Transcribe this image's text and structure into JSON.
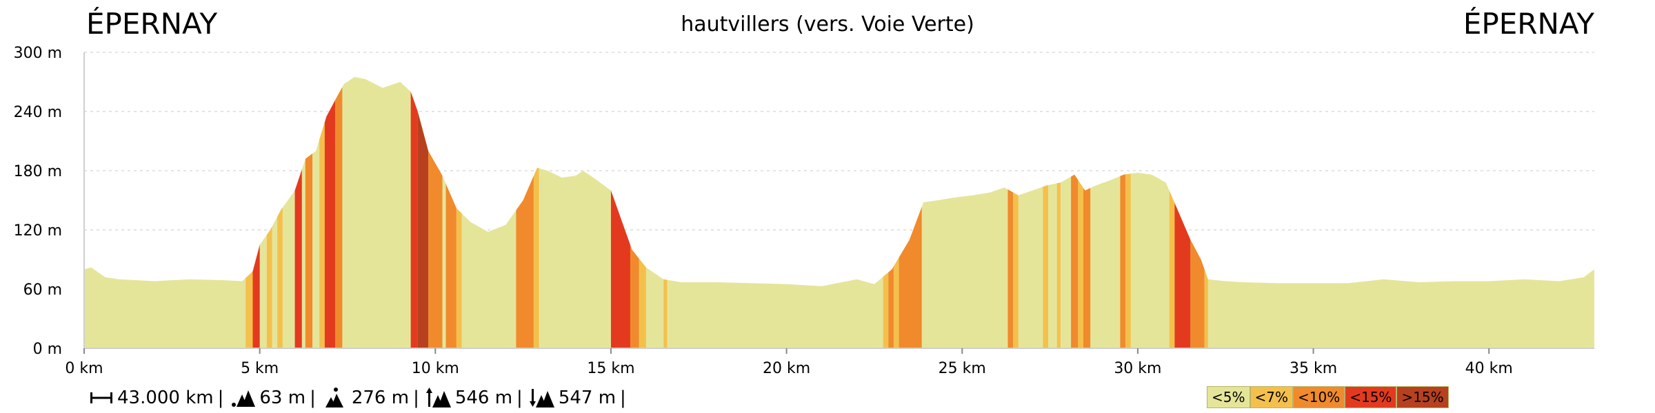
{
  "header": {
    "start": "ÉPERNAY",
    "end": "ÉPERNAY",
    "route": "hautvillers (vers. Voie Verte)"
  },
  "stats": {
    "distance": "43.000 km",
    "min_altitude": "63 m",
    "max_altitude": "276 m",
    "total_ascent": "546 m",
    "total_descent": "547 m"
  },
  "legend": [
    {
      "label": "<5%",
      "color": "#e5e59a"
    },
    {
      "label": "<7%",
      "color": "#f4c04c"
    },
    {
      "label": "<10%",
      "color": "#f08a2c"
    },
    {
      "label": "<15%",
      "color": "#e33a1f"
    },
    {
      "label": ">15%",
      "color": "#b7411e"
    }
  ],
  "chart_data": {
    "type": "area",
    "title": "hautvillers (vers. Voie Verte)",
    "xlabel": "",
    "ylabel": "",
    "xlim": [
      0,
      43
    ],
    "ylim": [
      0,
      300
    ],
    "x_unit": "km",
    "y_unit": "m",
    "x_ticks": [
      "0 km",
      "5 km",
      "10 km",
      "15 km",
      "20 km",
      "25 km",
      "30 km",
      "35 km",
      "40 km"
    ],
    "y_ticks": [
      "0 m",
      "60 m",
      "120 m",
      "180 m",
      "240 m",
      "300 m"
    ],
    "grid": true,
    "series": [
      {
        "x": [
          0,
          0.2,
          0.6,
          1,
          2,
          3,
          4,
          4.5,
          4.8,
          5.0,
          5.3,
          5.6,
          6.0,
          6.3,
          6.6,
          6.9,
          7.2,
          7.4,
          7.7,
          8.0,
          8.5,
          9.0,
          9.3,
          9.5,
          9.8,
          10.2,
          10.6,
          11.0,
          11.5,
          12.0,
          12.5,
          12.9,
          13.2,
          13.6,
          14.0,
          14.2,
          14.5,
          15.0,
          15.3,
          15.6,
          16.0,
          16.5,
          17,
          18,
          19,
          20,
          21,
          22,
          22.5,
          23.0,
          23.5,
          23.9,
          24.3,
          24.8,
          25.3,
          25.8,
          26.2,
          26.6,
          27.0,
          27.4,
          27.8,
          28.2,
          28.5,
          28.8,
          29.2,
          29.6,
          30.0,
          30.4,
          30.8,
          31.2,
          31.5,
          31.8,
          32.0,
          32.5,
          33,
          34,
          35,
          36,
          37,
          38,
          39,
          40,
          41,
          42,
          42.7,
          43
        ],
        "y": [
          80,
          82,
          72,
          70,
          68,
          70,
          69,
          68,
          78,
          105,
          120,
          140,
          160,
          192,
          200,
          235,
          255,
          268,
          275,
          273,
          264,
          270,
          260,
          240,
          200,
          175,
          142,
          128,
          118,
          125,
          150,
          183,
          180,
          173,
          175,
          180,
          173,
          160,
          130,
          100,
          82,
          70,
          67,
          67,
          66,
          65,
          63,
          70,
          65,
          80,
          110,
          148,
          150,
          153,
          155,
          158,
          163,
          155,
          160,
          165,
          168,
          176,
          160,
          165,
          170,
          176,
          178,
          176,
          168,
          135,
          110,
          90,
          70,
          68,
          67,
          66,
          66,
          66,
          70,
          67,
          68,
          68,
          70,
          68,
          72,
          80
        ],
        "grade_bands": [
          {
            "from": 4.6,
            "to": 4.8,
            "class": "<7%"
          },
          {
            "from": 4.8,
            "to": 5.0,
            "class": "<15%"
          },
          {
            "from": 5.2,
            "to": 5.35,
            "class": "<7%"
          },
          {
            "from": 5.5,
            "to": 5.65,
            "class": "<7%"
          },
          {
            "from": 6.0,
            "to": 6.2,
            "class": "<15%"
          },
          {
            "from": 6.3,
            "to": 6.5,
            "class": "<10%"
          },
          {
            "from": 6.7,
            "to": 6.85,
            "class": "<7%"
          },
          {
            "from": 6.85,
            "to": 7.15,
            "class": "<15%"
          },
          {
            "from": 7.15,
            "to": 7.35,
            "class": "<10%"
          },
          {
            "from": 9.3,
            "to": 9.5,
            "class": "<15%"
          },
          {
            "from": 9.5,
            "to": 9.8,
            "class": ">15%"
          },
          {
            "from": 9.8,
            "to": 10.2,
            "class": "<10%"
          },
          {
            "from": 10.3,
            "to": 10.6,
            "class": "<10%"
          },
          {
            "from": 10.6,
            "to": 10.75,
            "class": "<7%"
          },
          {
            "from": 12.3,
            "to": 12.8,
            "class": "<10%"
          },
          {
            "from": 12.8,
            "to": 12.95,
            "class": "<7%"
          },
          {
            "from": 15.0,
            "to": 15.55,
            "class": "<15%"
          },
          {
            "from": 15.55,
            "to": 15.8,
            "class": "<10%"
          },
          {
            "from": 15.8,
            "to": 16.0,
            "class": "<7%"
          },
          {
            "from": 16.5,
            "to": 16.6,
            "class": "<7%"
          },
          {
            "from": 22.75,
            "to": 22.9,
            "class": "<7%"
          },
          {
            "from": 22.9,
            "to": 23.05,
            "class": "<10%"
          },
          {
            "from": 23.05,
            "to": 23.2,
            "class": "<7%"
          },
          {
            "from": 23.2,
            "to": 23.85,
            "class": "<10%"
          },
          {
            "from": 26.3,
            "to": 26.45,
            "class": "<10%"
          },
          {
            "from": 26.45,
            "to": 26.6,
            "class": "<7%"
          },
          {
            "from": 27.3,
            "to": 27.45,
            "class": "<7%"
          },
          {
            "from": 27.7,
            "to": 27.8,
            "class": "<7%"
          },
          {
            "from": 28.1,
            "to": 28.3,
            "class": "<10%"
          },
          {
            "from": 28.3,
            "to": 28.45,
            "class": "<7%"
          },
          {
            "from": 28.45,
            "to": 28.65,
            "class": "<10%"
          },
          {
            "from": 29.5,
            "to": 29.65,
            "class": "<10%"
          },
          {
            "from": 29.65,
            "to": 29.8,
            "class": "<7%"
          },
          {
            "from": 30.9,
            "to": 31.05,
            "class": "<7%"
          },
          {
            "from": 31.05,
            "to": 31.5,
            "class": "<15%"
          },
          {
            "from": 31.5,
            "to": 31.9,
            "class": "<10%"
          },
          {
            "from": 31.9,
            "to": 32.0,
            "class": "<7%"
          }
        ]
      }
    ]
  }
}
